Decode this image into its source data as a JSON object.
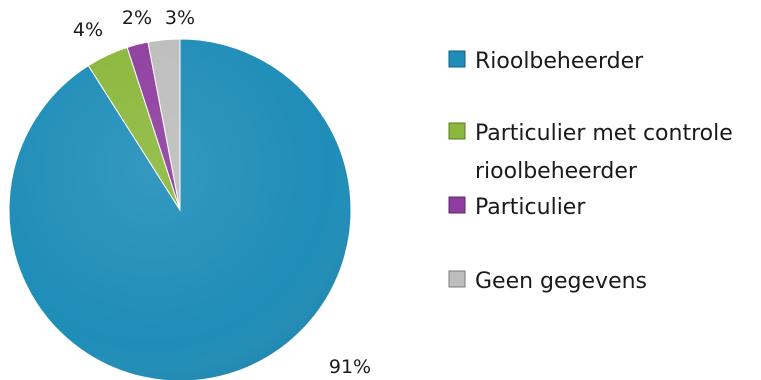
{
  "chart_data": {
    "type": "pie",
    "title": "",
    "slices": [
      {
        "name": "Rioolbeheerder",
        "value": 91,
        "label": "91%",
        "color": "#1E8DB8"
      },
      {
        "name": "Particulier met controle rioolbeheerder",
        "value": 4,
        "label": "4%",
        "color": "#8BB73B"
      },
      {
        "name": "Particulier",
        "value": 2,
        "label": "2%",
        "color": "#8E3D9E"
      },
      {
        "name": "Geen gegevens",
        "value": 3,
        "label": "3%",
        "color": "#BDBDBD"
      }
    ],
    "legend": {
      "position": "right",
      "items": [
        {
          "lines": [
            "Rioolbeheerder"
          ]
        },
        {
          "lines": [
            "Particulier met controle",
            "rioolbeheerder"
          ]
        },
        {
          "lines": [
            "Particulier"
          ]
        },
        {
          "lines": [
            "Geen gegevens"
          ]
        }
      ]
    },
    "start_angle_deg": 0,
    "direction": "clockwise"
  }
}
